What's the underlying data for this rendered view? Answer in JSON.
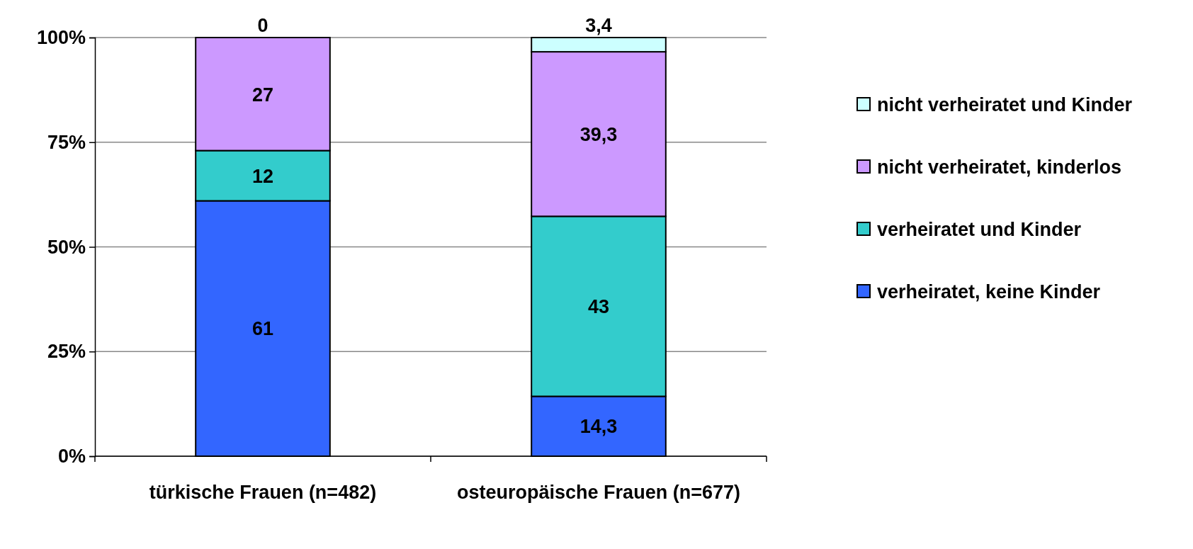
{
  "chart_data": {
    "type": "bar",
    "stacked": true,
    "categories": [
      "türkische Frauen (n=482)",
      "osteuropäische Frauen (n=677)"
    ],
    "series": [
      {
        "name": "verheiratet, keine Kinder",
        "color": "#3366ff",
        "values": [
          61,
          14.3
        ],
        "value_labels": [
          "61",
          "14,3"
        ]
      },
      {
        "name": "verheiratet und Kinder",
        "color": "#33cccc",
        "values": [
          12,
          43
        ],
        "value_labels": [
          "12",
          "43"
        ]
      },
      {
        "name": "nicht verheiratet, kinderlos",
        "color": "#cc99ff",
        "values": [
          27,
          39.3
        ],
        "value_labels": [
          "27",
          "39,3"
        ]
      },
      {
        "name": "nicht verheiratet und Kinder",
        "color": "#ccffff",
        "values": [
          0,
          3.4
        ],
        "value_labels": [
          "0",
          "3,4"
        ]
      }
    ],
    "ylim": [
      0,
      100
    ],
    "yticks": [
      {
        "value": 0,
        "label": "0%"
      },
      {
        "value": 25,
        "label": "25%"
      },
      {
        "value": 50,
        "label": "50%"
      },
      {
        "value": 75,
        "label": "75%"
      },
      {
        "value": 100,
        "label": "100%"
      }
    ],
    "grid": "y",
    "legend": "right"
  }
}
